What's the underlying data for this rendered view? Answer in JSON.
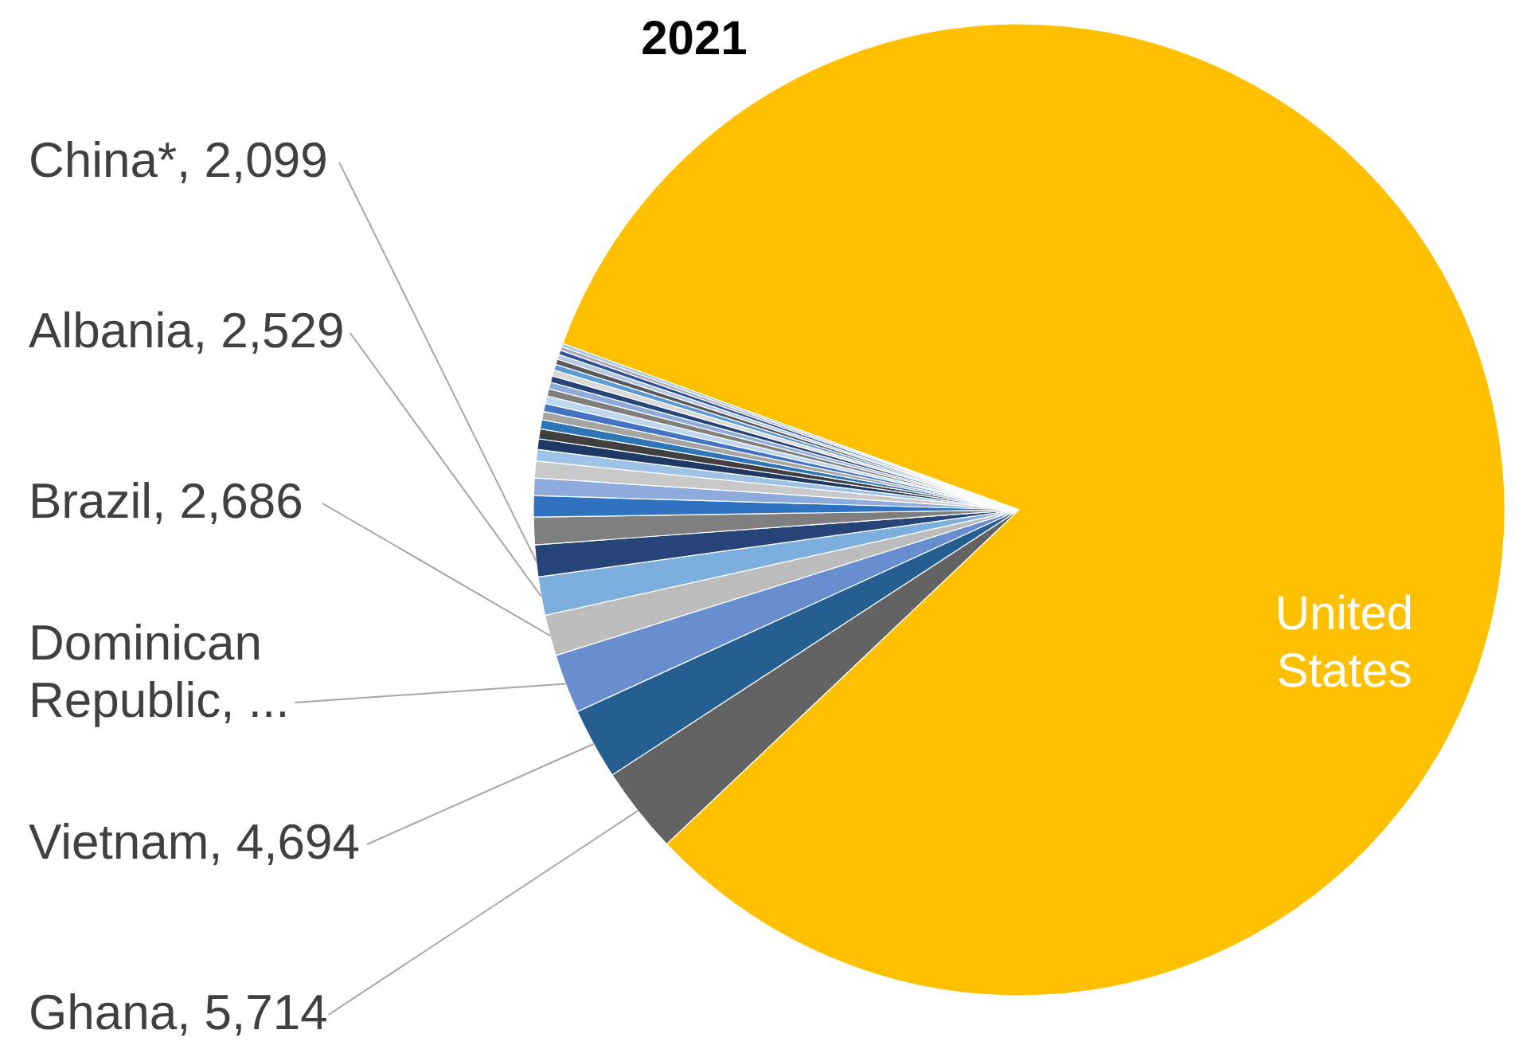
{
  "chart_data": {
    "type": "pie",
    "title": "2021",
    "categories": [
      "United States",
      "Ghana",
      "Vietnam",
      "Dominican Republic",
      "Brazil",
      "Albania",
      "China*",
      null,
      null,
      null,
      null,
      null,
      null,
      null,
      null,
      null,
      null,
      null,
      null,
      null,
      null,
      null,
      null,
      null,
      null,
      null,
      null,
      null
    ],
    "values": [
      163000,
      5714,
      4694,
      3900,
      2686,
      2529,
      2099,
      1800,
      1400,
      1150,
      1100,
      750,
      700,
      650,
      600,
      550,
      520,
      500,
      480,
      450,
      420,
      400,
      380,
      350,
      320,
      300,
      250,
      200
    ],
    "value_labels": [
      null,
      "5,714",
      "4,694",
      "...",
      "2,686",
      "2,529",
      "2,099",
      null,
      null,
      null,
      null,
      null,
      null,
      null,
      null,
      null,
      null,
      null,
      null,
      null,
      null,
      null,
      null,
      null,
      null,
      null,
      null,
      null
    ],
    "colors": [
      "#ffc000",
      "#636363",
      "#255e91",
      "#698ed0",
      "#bcbcbc",
      "#7cafdd",
      "#264478",
      "#7f7f7f",
      "#2f73c0",
      "#8faadc",
      "#c9c9c9",
      "#9dc3e6",
      "#1f3864",
      "#404040",
      "#2e75b6",
      "#a5a5a5",
      "#4472c4",
      "#bdd7ee",
      "#7f7f7f",
      "#8faadc",
      "#264478",
      "#d9d9d9",
      "#5b9bd5",
      "#595959",
      "#b4c7e7",
      "#2f5597",
      "#aeaabc",
      "#9dc3e6"
    ]
  }
}
